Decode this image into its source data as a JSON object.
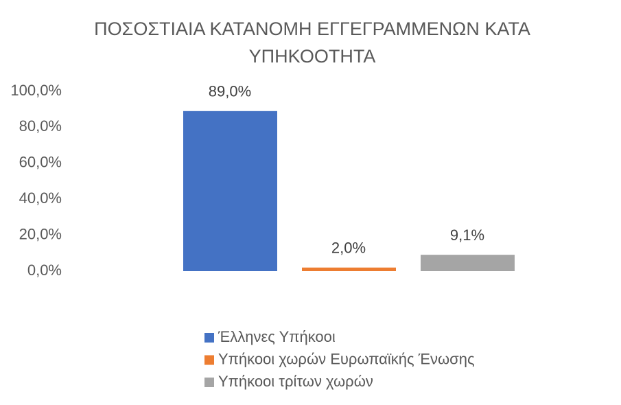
{
  "chart_data": {
    "type": "bar",
    "title": "ΠΟΣΟΣΤΙΑΙΑ ΚΑΤΑΝΟΜΗ  ΕΓΓΕΓΡΑΜΜΕΝΩΝ ΚΑΤΑ ΥΠΗΚΟΟΤΗΤΑ",
    "categories": [
      null
    ],
    "series": [
      {
        "name": "Έλληνες Υπήκοοι",
        "color": "#4472c4",
        "values": [
          89.0
        ],
        "value_labels": [
          "89,0%"
        ]
      },
      {
        "name": "Υπήκοοι χωρών Ευρωπαϊκής Ένωσης",
        "color": "#ed7d31",
        "values": [
          2.0
        ],
        "value_labels": [
          "2,0%"
        ]
      },
      {
        "name": "Υπήκοοι τρίτων χωρών",
        "color": "#a5a5a5",
        "values": [
          9.1
        ],
        "value_labels": [
          "9,1%"
        ]
      }
    ],
    "ylim": [
      0,
      100
    ],
    "yticks": [
      {
        "value": 0,
        "label": "0,0%"
      },
      {
        "value": 20,
        "label": "20,0%"
      },
      {
        "value": 40,
        "label": "40,0%"
      },
      {
        "value": 60,
        "label": "60,0%"
      },
      {
        "value": 80,
        "label": "80,0%"
      },
      {
        "value": 100,
        "label": "100,0%"
      }
    ],
    "grid": false,
    "legend": "bottom"
  }
}
